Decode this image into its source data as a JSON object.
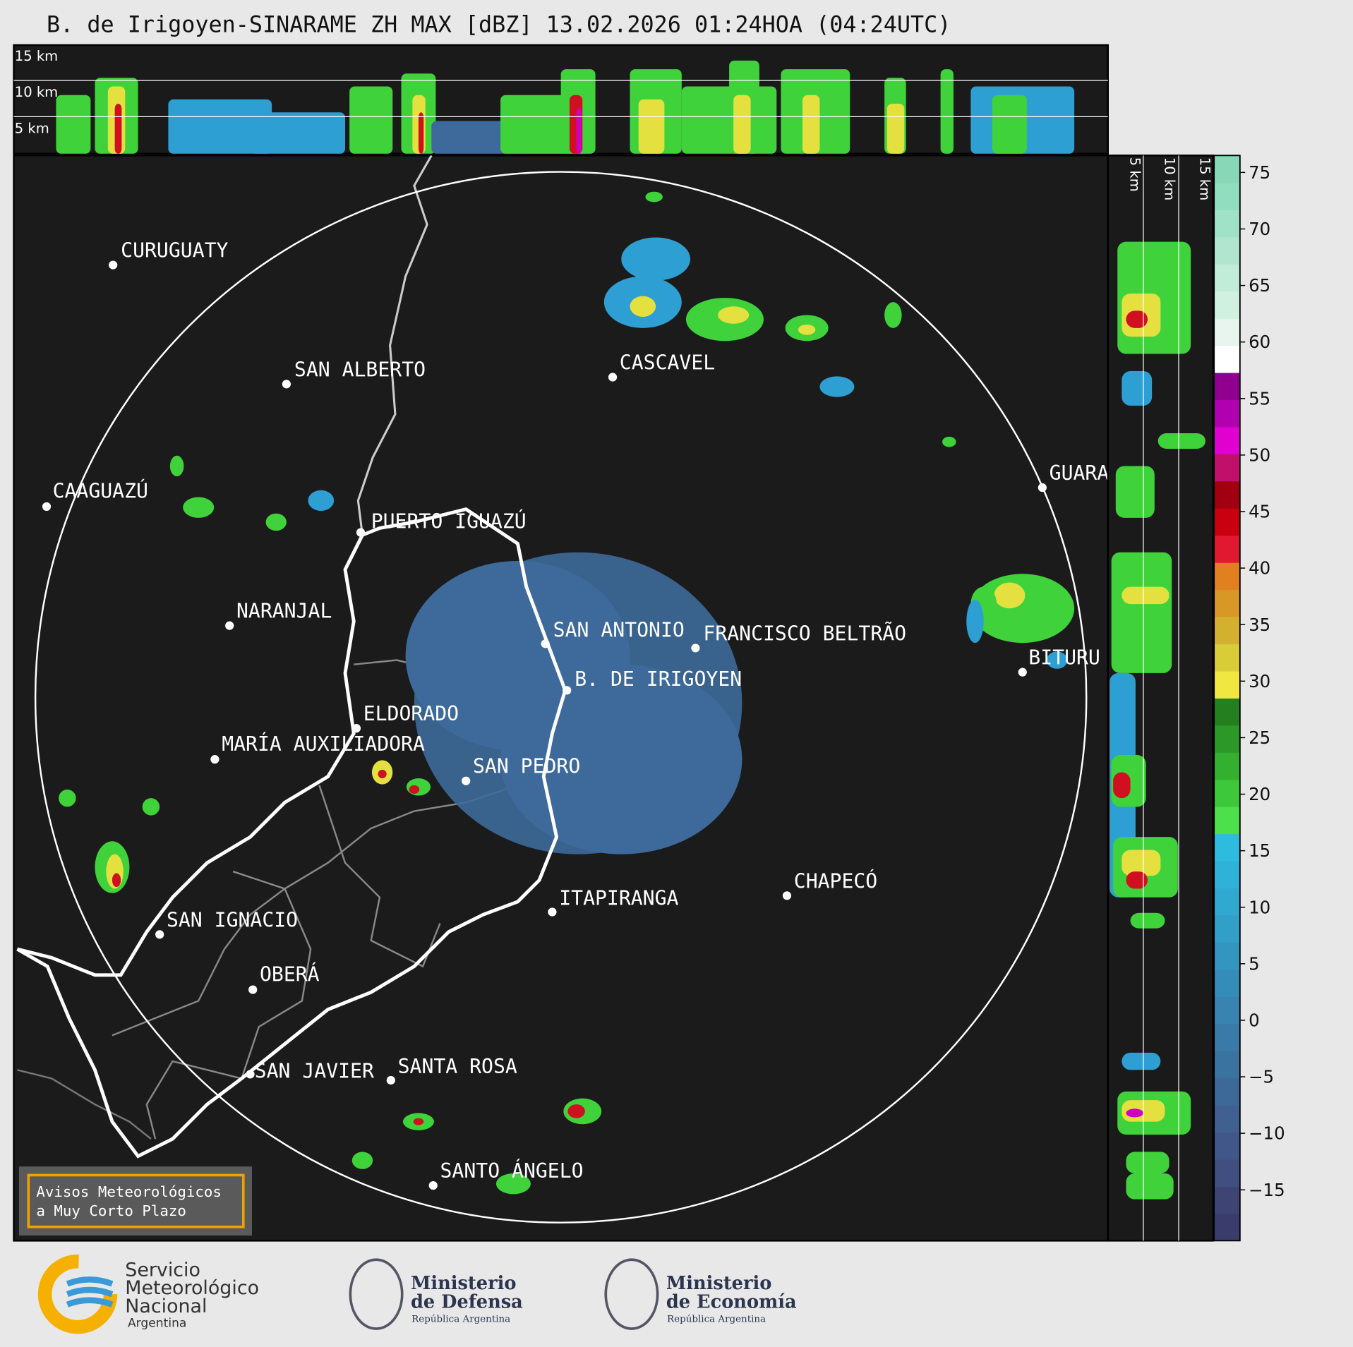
{
  "header": {
    "title": "B. de Irigoyen-SINARAME ZH MAX [dBZ] 13.02.2026 01:24HOA (04:24UTC)"
  },
  "profile_top": {
    "labels": [
      "15 km",
      "10 km",
      "5 km"
    ]
  },
  "profile_right": {
    "labels": [
      "5 km",
      "10 km",
      "15 km"
    ]
  },
  "map": {
    "cities": [
      "CURUGUATY",
      "SAN ALBERTO",
      "CASCAVEL",
      "CAAGUAZÚ",
      "GUARA",
      "PUERTO IGUAZÚ",
      "NARANJAL",
      "SAN ANTONIO",
      "FRANCISCO BELTRÃO",
      "BITURU",
      "B. DE IRIGOYEN",
      "ELDORADO",
      "MARÍA AUXILIADORA",
      "SAN PEDRO",
      "CHAPECÓ",
      "ITAPIRANGA",
      "SAN IGNACIO",
      "OBERÁ",
      "SAN JAVIER",
      "SANTA ROSA",
      "SANTO ÁNGELO"
    ]
  },
  "banner": {
    "lines": [
      "Avisos Meteorológicos",
      "a Muy Corto Plazo"
    ]
  },
  "colorbar": {
    "ylim": [
      -19.5,
      76.5
    ],
    "ticks": [
      75,
      70,
      65,
      60,
      55,
      50,
      45,
      40,
      35,
      30,
      25,
      20,
      15,
      10,
      5,
      0,
      {
        "value": -5,
        "label": "−5"
      },
      {
        "value": -10,
        "label": "−10"
      },
      {
        "value": -15,
        "label": "−15"
      }
    ],
    "colors": [
      "#3a3d6b",
      "#3e4575",
      "#404e80",
      "#41578a",
      "#3f6090",
      "#3d6998",
      "#3a72a0",
      "#3a7aa8",
      "#3883b0",
      "#358cb8",
      "#3395c0",
      "#329fc8",
      "#30a8d0",
      "#2fb1d8",
      "#2ebbe0",
      "#4ee04a",
      "#3cc83a",
      "#34b030",
      "#2c9828",
      "#24801f",
      "#f0e840",
      "#d8cc38",
      "#d4b030",
      "#d89828",
      "#e08020",
      "#e01830",
      "#c80010",
      "#a00010",
      "#c0106a",
      "#e000d0",
      "#b000b0",
      "#900090",
      "#ffffff",
      "#e8f5ee",
      "#d0f0e0",
      "#c0ecd8",
      "#b0e6d0",
      "#a0e2c8",
      "#90ddc0",
      "#88d8b8"
    ]
  },
  "footer": {
    "smn": [
      "Servicio",
      "Meteorológico",
      "Nacional",
      "Argentina"
    ],
    "defensa": [
      "Ministerio",
      "de Defensa",
      "República Argentina"
    ],
    "economia": [
      "Ministerio",
      "de Economía",
      "República Argentina"
    ]
  }
}
